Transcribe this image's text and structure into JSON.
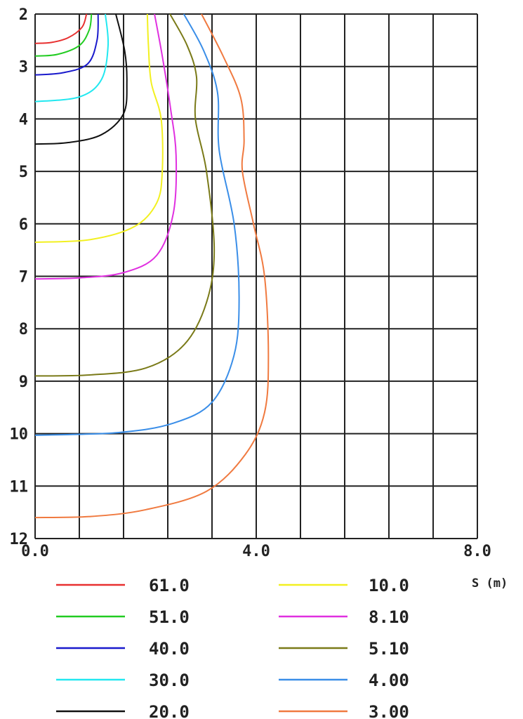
{
  "chart_data": {
    "type": "contour",
    "title": "",
    "xlabel": "S (m)",
    "ylabel": "",
    "xlim": [
      0,
      8
    ],
    "ylim": [
      2,
      12
    ],
    "y_inverted": true,
    "grid": true,
    "x_grid_step": 0.8,
    "y_grid_step": 1,
    "x_tick_labels": [
      "0.0",
      "4.0",
      "8.0"
    ],
    "x_tick_values": [
      0,
      4,
      8
    ],
    "y_tick_labels": [
      "2",
      "3",
      "4",
      "5",
      "6",
      "7",
      "8",
      "9",
      "10",
      "11",
      "12"
    ],
    "y_tick_values": [
      2,
      3,
      4,
      5,
      6,
      7,
      8,
      9,
      10,
      11,
      12
    ],
    "legend_placement": "bottom",
    "series": [
      {
        "name": "61.0",
        "color": "#e83030",
        "points": [
          [
            0.93,
            2
          ],
          [
            0.85,
            2.25
          ],
          [
            0.6,
            2.45
          ],
          [
            0.3,
            2.54
          ],
          [
            0,
            2.56
          ]
        ]
      },
      {
        "name": "51.0",
        "color": "#22cc22",
        "points": [
          [
            1.02,
            2
          ],
          [
            0.98,
            2.3
          ],
          [
            0.8,
            2.6
          ],
          [
            0.4,
            2.77
          ],
          [
            0,
            2.8
          ]
        ]
      },
      {
        "name": "40.0",
        "color": "#1a1acc",
        "points": [
          [
            1.14,
            2
          ],
          [
            1.12,
            2.5
          ],
          [
            0.95,
            2.95
          ],
          [
            0.5,
            3.12
          ],
          [
            0,
            3.16
          ]
        ]
      },
      {
        "name": "30.0",
        "color": "#22e8f0",
        "points": [
          [
            1.27,
            2
          ],
          [
            1.32,
            2.6
          ],
          [
            1.2,
            3.25
          ],
          [
            0.8,
            3.58
          ],
          [
            0,
            3.67
          ]
        ]
      },
      {
        "name": "20.0",
        "color": "#111111",
        "points": [
          [
            1.46,
            2
          ],
          [
            1.62,
            2.7
          ],
          [
            1.66,
            3.3
          ],
          [
            1.6,
            3.9
          ],
          [
            1.2,
            4.3
          ],
          [
            0.6,
            4.45
          ],
          [
            0,
            4.48
          ]
        ]
      },
      {
        "name": "10.0",
        "color": "#f2f020",
        "points": [
          [
            2.03,
            2
          ],
          [
            2.05,
            2.6
          ],
          [
            2.1,
            3.3
          ],
          [
            2.28,
            4
          ],
          [
            2.3,
            5
          ],
          [
            2.2,
            5.6
          ],
          [
            1.8,
            6.05
          ],
          [
            1.0,
            6.3
          ],
          [
            0,
            6.35
          ]
        ]
      },
      {
        "name": "8.10",
        "color": "#e030e0",
        "points": [
          [
            2.16,
            2
          ],
          [
            2.3,
            2.8
          ],
          [
            2.45,
            3.8
          ],
          [
            2.55,
            4.7
          ],
          [
            2.5,
            5.8
          ],
          [
            2.2,
            6.6
          ],
          [
            1.6,
            6.93
          ],
          [
            0.8,
            7.03
          ],
          [
            0,
            7.05
          ]
        ]
      },
      {
        "name": "5.10",
        "color": "#7a7a18",
        "points": [
          [
            2.44,
            2
          ],
          [
            2.75,
            2.6
          ],
          [
            2.92,
            3.2
          ],
          [
            2.9,
            4
          ],
          [
            3.1,
            5
          ],
          [
            3.24,
            6.5
          ],
          [
            3.1,
            7.5
          ],
          [
            2.7,
            8.3
          ],
          [
            2,
            8.75
          ],
          [
            1,
            8.88
          ],
          [
            0,
            8.9
          ]
        ]
      },
      {
        "name": "4.00",
        "color": "#3a8ee8",
        "points": [
          [
            2.69,
            2
          ],
          [
            3.05,
            2.7
          ],
          [
            3.3,
            3.5
          ],
          [
            3.33,
            4.6
          ],
          [
            3.6,
            6
          ],
          [
            3.69,
            7.4
          ],
          [
            3.6,
            8.5
          ],
          [
            3.2,
            9.4
          ],
          [
            2.5,
            9.8
          ],
          [
            1.5,
            9.98
          ],
          [
            0,
            10.03
          ]
        ]
      },
      {
        "name": "3.00",
        "color": "#f07a40",
        "points": [
          [
            3.01,
            2
          ],
          [
            3.4,
            2.8
          ],
          [
            3.72,
            3.6
          ],
          [
            3.78,
            4.4
          ],
          [
            3.75,
            5
          ],
          [
            3.95,
            6
          ],
          [
            4.15,
            7
          ],
          [
            4.22,
            8.5
          ],
          [
            4.15,
            9.6
          ],
          [
            3.8,
            10.4
          ],
          [
            3.1,
            11.1
          ],
          [
            2,
            11.45
          ],
          [
            1,
            11.58
          ],
          [
            0,
            11.6
          ]
        ]
      }
    ]
  }
}
